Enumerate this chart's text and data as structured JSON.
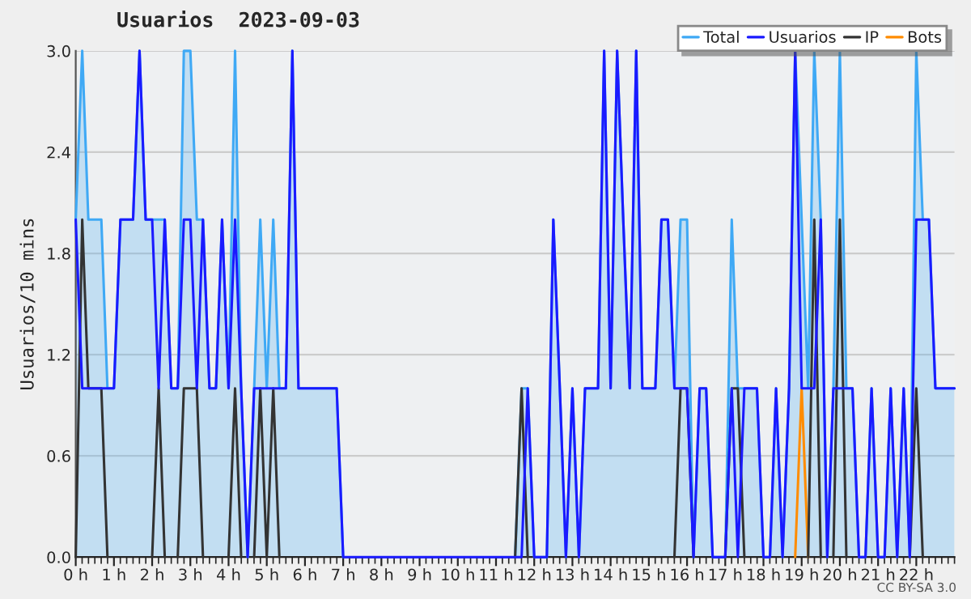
{
  "chart_data": {
    "type": "line",
    "title": "Usuarios  2023-09-03",
    "ylabel": "Usuarios/10 mins",
    "annotations": [
      "CC BY-SA 3.0"
    ],
    "x": [
      0,
      0.17,
      0.33,
      0.5,
      0.67,
      0.83,
      1,
      1.17,
      1.33,
      1.5,
      1.67,
      1.83,
      2,
      2.17,
      2.33,
      2.5,
      2.67,
      2.83,
      3,
      3.17,
      3.33,
      3.5,
      3.67,
      3.83,
      4,
      4.17,
      4.33,
      4.5,
      4.67,
      4.83,
      5,
      5.17,
      5.33,
      5.5,
      5.67,
      5.83,
      6,
      6.17,
      6.33,
      6.5,
      6.67,
      6.83,
      7,
      7.17,
      7.33,
      7.5,
      7.67,
      7.83,
      8,
      8.17,
      8.33,
      8.5,
      8.67,
      8.83,
      9,
      9.17,
      9.33,
      9.5,
      9.67,
      9.83,
      10,
      10.17,
      10.33,
      10.5,
      10.67,
      10.83,
      11,
      11.17,
      11.33,
      11.5,
      11.67,
      11.83,
      12,
      12.17,
      12.33,
      12.5,
      12.67,
      12.83,
      13,
      13.17,
      13.33,
      13.5,
      13.67,
      13.83,
      14,
      14.17,
      14.33,
      14.5,
      14.67,
      14.83,
      15,
      15.17,
      15.33,
      15.5,
      15.67,
      15.83,
      16,
      16.17,
      16.33,
      16.5,
      16.67,
      16.83,
      17,
      17.17,
      17.33,
      17.5,
      17.67,
      17.83,
      18,
      18.17,
      18.33,
      18.5,
      18.67,
      18.83,
      19,
      19.17,
      19.33,
      19.5,
      19.67,
      19.83,
      20,
      20.17,
      20.33,
      20.5,
      20.67,
      20.83,
      21,
      21.17,
      21.33,
      21.5,
      21.67,
      21.83,
      22,
      22.17,
      22.33,
      22.5,
      22.67,
      22.83,
      23
    ],
    "series": [
      {
        "name": "Total",
        "type": "area",
        "color": "#3fa9f5",
        "values": [
          2,
          3,
          2,
          2,
          2,
          1,
          1,
          2,
          2,
          2,
          3,
          2,
          2,
          2,
          2,
          1,
          1,
          3,
          3,
          2,
          2,
          1,
          1,
          2,
          1,
          3,
          1,
          0,
          1,
          2,
          1,
          2,
          1,
          1,
          3,
          1,
          1,
          1,
          1,
          1,
          1,
          1,
          0,
          null,
          null,
          null,
          null,
          null,
          null,
          null,
          null,
          null,
          null,
          null,
          null,
          null,
          null,
          null,
          null,
          null,
          null,
          null,
          null,
          null,
          null,
          null,
          null,
          null,
          null,
          0,
          1,
          1,
          0,
          0,
          0,
          2,
          1,
          0,
          1,
          0,
          1,
          1,
          1,
          3,
          1,
          3,
          2,
          1,
          3,
          1,
          1,
          1,
          2,
          2,
          1,
          2,
          2,
          0,
          1,
          1,
          0,
          0,
          0,
          2,
          1,
          1,
          1,
          1,
          0,
          0,
          1,
          0,
          1,
          3,
          2,
          1,
          3,
          2,
          0,
          1,
          3,
          1,
          1,
          0,
          0,
          1,
          0,
          0,
          1,
          0,
          1,
          0,
          3,
          2,
          2,
          1,
          1,
          1,
          1
        ]
      },
      {
        "name": "Usuarios",
        "color": "#1a1aff",
        "values": [
          2,
          1,
          1,
          1,
          1,
          1,
          1,
          2,
          2,
          2,
          3,
          2,
          2,
          1,
          2,
          1,
          1,
          2,
          2,
          1,
          2,
          1,
          1,
          2,
          1,
          2,
          1,
          0,
          1,
          1,
          1,
          1,
          1,
          1,
          3,
          1,
          1,
          1,
          1,
          1,
          1,
          1,
          0,
          0,
          0,
          0,
          0,
          0,
          0,
          0,
          0,
          0,
          0,
          0,
          0,
          0,
          0,
          0,
          0,
          0,
          0,
          0,
          0,
          0,
          0,
          0,
          0,
          0,
          0,
          0,
          0,
          1,
          0,
          0,
          0,
          2,
          1,
          0,
          1,
          0,
          1,
          1,
          1,
          3,
          1,
          3,
          2,
          1,
          3,
          1,
          1,
          1,
          2,
          2,
          1,
          1,
          1,
          0,
          1,
          1,
          0,
          0,
          0,
          1,
          0,
          1,
          1,
          1,
          0,
          0,
          1,
          0,
          1,
          3,
          1,
          1,
          1,
          2,
          0,
          1,
          1,
          1,
          1,
          0,
          0,
          1,
          0,
          0,
          1,
          0,
          1,
          0,
          2,
          2,
          2,
          1,
          1,
          1,
          1
        ]
      },
      {
        "name": "IP",
        "color": "#333333",
        "values": [
          0,
          2,
          1,
          1,
          1,
          0,
          null,
          null,
          null,
          null,
          null,
          null,
          0,
          1,
          0,
          null,
          0,
          1,
          1,
          1,
          0,
          null,
          null,
          null,
          0,
          1,
          0,
          null,
          0,
          1,
          0,
          1,
          0,
          null,
          null,
          null,
          null,
          null,
          null,
          null,
          null,
          null,
          null,
          null,
          null,
          null,
          null,
          null,
          null,
          null,
          null,
          null,
          null,
          null,
          null,
          null,
          null,
          null,
          null,
          null,
          null,
          null,
          null,
          null,
          null,
          null,
          null,
          null,
          null,
          0,
          1,
          0,
          null,
          null,
          null,
          null,
          null,
          null,
          null,
          null,
          null,
          null,
          null,
          null,
          null,
          null,
          null,
          null,
          null,
          null,
          null,
          null,
          null,
          null,
          0,
          1,
          1,
          0,
          null,
          null,
          null,
          null,
          0,
          1,
          1,
          0,
          null,
          null,
          null,
          null,
          null,
          null,
          null,
          null,
          null,
          0,
          2,
          0,
          null,
          0,
          2,
          0,
          null,
          null,
          null,
          null,
          null,
          null,
          null,
          null,
          null,
          0,
          1,
          0,
          null,
          null,
          null,
          null,
          null
        ]
      },
      {
        "name": "Bots",
        "color": "#ff8c00",
        "values": [
          null,
          null,
          null,
          null,
          null,
          null,
          null,
          null,
          null,
          null,
          null,
          null,
          null,
          null,
          null,
          null,
          null,
          null,
          null,
          null,
          null,
          null,
          null,
          null,
          null,
          null,
          null,
          null,
          null,
          null,
          null,
          null,
          null,
          null,
          null,
          null,
          null,
          null,
          null,
          null,
          null,
          null,
          null,
          null,
          null,
          null,
          null,
          null,
          null,
          null,
          null,
          null,
          null,
          null,
          null,
          null,
          null,
          null,
          null,
          null,
          null,
          null,
          null,
          null,
          null,
          null,
          null,
          null,
          null,
          null,
          null,
          null,
          null,
          null,
          null,
          null,
          null,
          null,
          null,
          null,
          null,
          null,
          null,
          null,
          null,
          null,
          null,
          null,
          null,
          null,
          null,
          null,
          null,
          null,
          null,
          null,
          null,
          null,
          null,
          null,
          null,
          null,
          null,
          null,
          null,
          null,
          null,
          null,
          null,
          null,
          null,
          null,
          null,
          0,
          1,
          0,
          null,
          null,
          null,
          null,
          null,
          null,
          null,
          null,
          null,
          null,
          null,
          null,
          null,
          null,
          null,
          null,
          null,
          null,
          null,
          null,
          null,
          null,
          null
        ]
      }
    ],
    "xlim": [
      0,
      23
    ],
    "xticks": [
      {
        "value": 0,
        "label": "0 h"
      },
      {
        "value": 1,
        "label": "1 h"
      },
      {
        "value": 2,
        "label": "2 h"
      },
      {
        "value": 3,
        "label": "3 h"
      },
      {
        "value": 4,
        "label": "4 h"
      },
      {
        "value": 5,
        "label": "5 h"
      },
      {
        "value": 6,
        "label": "6 h"
      },
      {
        "value": 7,
        "label": "7 h"
      },
      {
        "value": 8,
        "label": "8 h"
      },
      {
        "value": 9,
        "label": "9 h"
      },
      {
        "value": 10,
        "label": "10 h"
      },
      {
        "value": 11,
        "label": "11 h"
      },
      {
        "value": 12,
        "label": "12 h"
      },
      {
        "value": 13,
        "label": "13 h"
      },
      {
        "value": 14,
        "label": "14 h"
      },
      {
        "value": 15,
        "label": "15 h"
      },
      {
        "value": 16,
        "label": "16 h"
      },
      {
        "value": 17,
        "label": "17 h"
      },
      {
        "value": 18,
        "label": "18 h"
      },
      {
        "value": 19,
        "label": "19 h"
      },
      {
        "value": 20,
        "label": "20 h"
      },
      {
        "value": 21,
        "label": "21 h"
      },
      {
        "value": 22,
        "label": "22 h"
      }
    ],
    "ylim": [
      0,
      3
    ],
    "yticks": [
      {
        "value": 0,
        "label": "0.0"
      },
      {
        "value": 0.6,
        "label": "0.6"
      },
      {
        "value": 1.2,
        "label": "1.2"
      },
      {
        "value": 1.8,
        "label": "1.8"
      },
      {
        "value": 2.4,
        "label": "2.4"
      },
      {
        "value": 3,
        "label": "3.0"
      }
    ],
    "grid": "y",
    "legend": "top right"
  }
}
